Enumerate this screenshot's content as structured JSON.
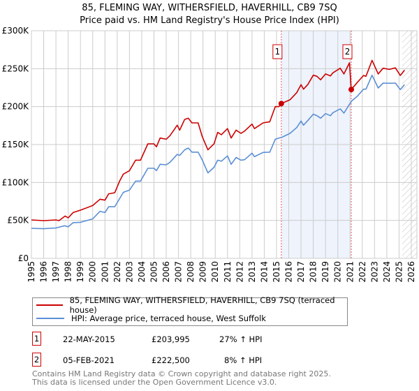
{
  "chart_data": {
    "type": "line",
    "title": "85, FLEMING WAY, WITHERSFIELD, HAVERHILL, CB9 7SQ",
    "subtitle": "Price paid vs. HM Land Registry's House Price Index (HPI)",
    "xlim": [
      1995,
      2026
    ],
    "ylim": [
      0,
      300000
    ],
    "x_ticks": [
      "1995",
      "1996",
      "1997",
      "1998",
      "1999",
      "2000",
      "2001",
      "2002",
      "2003",
      "2004",
      "2005",
      "2006",
      "2007",
      "2008",
      "2009",
      "2010",
      "2011",
      "2012",
      "2013",
      "2014",
      "2015",
      "2016",
      "2017",
      "2018",
      "2019",
      "2020",
      "2021",
      "2022",
      "2023",
      "2024",
      "2025",
      "2026"
    ],
    "y_ticks": [
      {
        "v": 0,
        "label": "£0"
      },
      {
        "v": 50000,
        "label": "£50K"
      },
      {
        "v": 100000,
        "label": "£100K"
      },
      {
        "v": 150000,
        "label": "£150K"
      },
      {
        "v": 200000,
        "label": "£200K"
      },
      {
        "v": 250000,
        "label": "£250K"
      },
      {
        "v": 300000,
        "label": "£300K"
      }
    ],
    "grid": true,
    "shaded_range": [
      2015.39,
      2021.1
    ],
    "hatched_from": 2025.25,
    "series": [
      {
        "name": "85, FLEMING WAY, WITHERSFIELD, HAVERHILL, CB9 7SQ (terraced house)",
        "color": "#cc0000",
        "x": [
          1995,
          1996,
          1997,
          1997.25,
          1997.75,
          1998,
          1998.4,
          1999,
          2000,
          2000.6,
          2001,
          2001.3,
          2001.8,
          2002.2,
          2002.5,
          2003,
          2003.5,
          2003.9,
          2004.5,
          2005,
          2005.2,
          2005.5,
          2006,
          2006.3,
          2006.9,
          2007.1,
          2007.5,
          2007.8,
          2008.1,
          2008.6,
          2008.95,
          2009.4,
          2009.9,
          2010.2,
          2010.5,
          2011,
          2011.3,
          2011.7,
          2012.1,
          2012.4,
          2013,
          2013.2,
          2013.9,
          2014.45,
          2014.9,
          2015.2,
          2015.39,
          2016.1,
          2016.65,
          2017,
          2017.2,
          2017.55,
          2018,
          2018.3,
          2018.6,
          2019,
          2019.4,
          2019.6,
          2020.2,
          2020.5,
          2020.95,
          2021.1,
          2021.6,
          2022.1,
          2022.3,
          2022.8,
          2023.3,
          2023.7,
          2024.2,
          2024.7,
          2025.1,
          2025.45
        ],
        "y": [
          50600,
          49700,
          50600,
          49700,
          55800,
          53400,
          60400,
          63500,
          69600,
          77900,
          76700,
          85000,
          86500,
          101800,
          111000,
          115600,
          129400,
          129400,
          150900,
          150900,
          147000,
          158600,
          157000,
          161600,
          175500,
          169000,
          183000,
          184700,
          178500,
          178500,
          160000,
          143000,
          151000,
          166000,
          163000,
          171000,
          158600,
          169000,
          164700,
          167800,
          177000,
          171000,
          178500,
          180000,
          200000,
          200000,
          203995,
          209000,
          218400,
          229000,
          223000,
          229000,
          241400,
          239900,
          235300,
          243000,
          240500,
          244500,
          250600,
          243000,
          257700,
          222500,
          232000,
          241000,
          240000,
          261000,
          243000,
          250600,
          249000,
          251000,
          241000,
          248000
        ]
      },
      {
        "name": "HPI: Average price, terraced house, West Suffolk",
        "color": "#5b8fd4",
        "x": [
          1995,
          1996,
          1997,
          1997.7,
          1998,
          1998.4,
          1999,
          2000,
          2000.6,
          2001,
          2001.3,
          2001.8,
          2002.2,
          2002.5,
          2003,
          2003.5,
          2003.9,
          2004.5,
          2005,
          2005.2,
          2005.5,
          2006,
          2006.3,
          2006.9,
          2007.1,
          2007.5,
          2007.8,
          2008.1,
          2008.6,
          2008.95,
          2009.4,
          2009.9,
          2010.2,
          2010.5,
          2011,
          2011.3,
          2011.7,
          2012.1,
          2012.4,
          2013,
          2013.2,
          2013.9,
          2014.45,
          2014.9,
          2015.2,
          2015.5,
          2016.1,
          2016.65,
          2017,
          2017.2,
          2017.55,
          2018,
          2018.3,
          2018.6,
          2019,
          2019.4,
          2019.6,
          2020.2,
          2020.5,
          2020.95,
          2021.15,
          2021.6,
          2022.1,
          2022.3,
          2022.8,
          2023.3,
          2023.7,
          2024.2,
          2024.7,
          2025.1,
          2025.45
        ],
        "y": [
          39600,
          39000,
          40000,
          43000,
          41500,
          47000,
          47500,
          52000,
          62000,
          60400,
          68000,
          68000,
          78800,
          87000,
          90000,
          101800,
          101800,
          118700,
          118700,
          115600,
          124000,
          123300,
          126400,
          137000,
          135600,
          143000,
          145400,
          140000,
          140000,
          129400,
          112600,
          120000,
          129400,
          128000,
          135000,
          124000,
          133000,
          129400,
          130000,
          138700,
          134000,
          139600,
          140000,
          157000,
          158600,
          160000,
          164700,
          172400,
          181000,
          175500,
          181600,
          190000,
          188000,
          184700,
          190800,
          188000,
          192000,
          197000,
          191400,
          203000,
          207700,
          213800,
          223000,
          223000,
          241400,
          224500,
          231000,
          230700,
          231000,
          222400,
          229000
        ]
      }
    ],
    "sales": [
      {
        "id": "1",
        "x": 2015.39,
        "y": 203995
      },
      {
        "id": "2",
        "x": 2021.1,
        "y": 222500
      }
    ]
  },
  "legend": {
    "property": "85, FLEMING WAY, WITHERSFIELD, HAVERHILL, CB9 7SQ (terraced house)",
    "hpi": "HPI: Average price, terraced house, West Suffolk"
  },
  "transactions": [
    {
      "id": "1",
      "date": "22-MAY-2015",
      "price": "£203,995",
      "hpi": "27% ↑ HPI"
    },
    {
      "id": "2",
      "date": "05-FEB-2021",
      "price": "£222,500",
      "hpi": "8% ↑ HPI"
    }
  ],
  "footer": {
    "line1": "Contains HM Land Registry data © Crown copyright and database right 2025.",
    "line2": "This data is licensed under the Open Government Licence v3.0."
  }
}
